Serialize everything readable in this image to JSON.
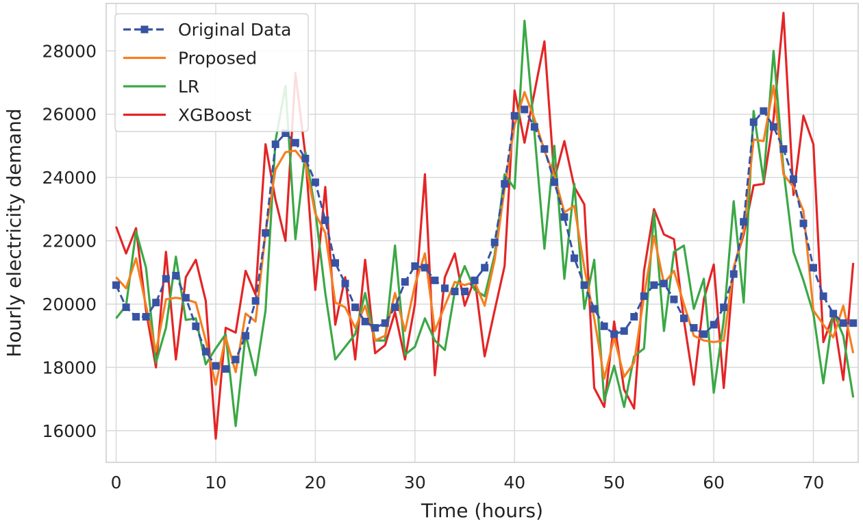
{
  "chart_data": {
    "type": "line",
    "title": "",
    "xlabel": "Time (hours)",
    "ylabel": "Hourly electricity demand",
    "xlim": [
      -1,
      74.5
    ],
    "ylim": [
      15000,
      29500
    ],
    "xticks": [
      0,
      10,
      20,
      30,
      40,
      50,
      60,
      70
    ],
    "yticks": [
      16000,
      18000,
      20000,
      22000,
      24000,
      26000,
      28000
    ],
    "grid": true,
    "legend_position": "top-left",
    "x": [
      0,
      1,
      2,
      3,
      4,
      5,
      6,
      7,
      8,
      9,
      10,
      11,
      12,
      13,
      14,
      15,
      16,
      17,
      18,
      19,
      20,
      21,
      22,
      23,
      24,
      25,
      26,
      27,
      28,
      29,
      30,
      31,
      32,
      33,
      34,
      35,
      36,
      37,
      38,
      39,
      40,
      41,
      42,
      43,
      44,
      45,
      46,
      47,
      48,
      49,
      50,
      51,
      52,
      53,
      54,
      55,
      56,
      57,
      58,
      59,
      60,
      61,
      62,
      63,
      64,
      65,
      66,
      67,
      68,
      69,
      70,
      71,
      72,
      73,
      74
    ],
    "series": [
      {
        "name": "Original Data",
        "color": "#3853a4",
        "marker": "square",
        "dashed": true,
        "values": [
          20600,
          19900,
          19600,
          19600,
          20050,
          20800,
          20900,
          20200,
          19300,
          18500,
          18050,
          17950,
          18250,
          19000,
          20100,
          22250,
          25050,
          25400,
          25100,
          24600,
          23850,
          22650,
          21300,
          20650,
          19900,
          19450,
          19250,
          19400,
          19900,
          20700,
          21200,
          21150,
          20750,
          20500,
          20400,
          20400,
          20750,
          21150,
          21950,
          23800,
          25950,
          26150,
          25600,
          24900,
          23850,
          22750,
          21450,
          20600,
          19850,
          19300,
          19050,
          19150,
          19600,
          20250,
          20600,
          20650,
          20150,
          19550,
          19250,
          19050,
          19350,
          19900,
          20950,
          22600,
          25750,
          26100,
          25600,
          24900,
          23950,
          22550,
          21150,
          20250,
          19700,
          19400,
          19400
        ]
      },
      {
        "name": "Proposed",
        "color": "#f57f20",
        "marker": "",
        "dashed": false,
        "values": [
          20850,
          20500,
          21450,
          19950,
          18500,
          20150,
          20200,
          20150,
          20050,
          18850,
          17450,
          18950,
          17850,
          19700,
          19450,
          22250,
          24250,
          24800,
          24850,
          24450,
          22850,
          22250,
          20050,
          19900,
          19250,
          19950,
          18850,
          19000,
          20350,
          19150,
          20600,
          21600,
          19150,
          19950,
          20700,
          20600,
          20700,
          19950,
          21400,
          23650,
          25650,
          26700,
          25850,
          24850,
          24050,
          22900,
          23100,
          21150,
          19550,
          17650,
          18950,
          17700,
          18150,
          20250,
          22150,
          20650,
          21050,
          20000,
          19000,
          18850,
          18800,
          18850,
          21150,
          22300,
          25200,
          25150,
          26900,
          24100,
          23700,
          22950,
          19800,
          19350,
          18950,
          19950,
          18450
        ]
      },
      {
        "name": "LR",
        "color": "#3aa845",
        "marker": "",
        "dashed": false,
        "values": [
          19550,
          19950,
          22300,
          21150,
          18150,
          19250,
          21500,
          19500,
          19550,
          18100,
          18600,
          19050,
          16150,
          19050,
          17750,
          19800,
          25150,
          26900,
          22050,
          24800,
          22950,
          20350,
          18250,
          18650,
          19050,
          20350,
          18850,
          18850,
          21850,
          18400,
          18650,
          19550,
          18850,
          18550,
          20400,
          21200,
          20450,
          20250,
          21550,
          24100,
          23650,
          28950,
          25400,
          21750,
          25000,
          20800,
          23800,
          19850,
          21400,
          16950,
          18050,
          16750,
          18350,
          18600,
          22900,
          19150,
          21650,
          21850,
          19850,
          20800,
          17200,
          19500,
          23250,
          20050,
          26100,
          23900,
          28000,
          24250,
          21650,
          20750,
          19700,
          17500,
          19750,
          19000,
          17050
        ]
      },
      {
        "name": "XGBoost",
        "color": "#e32526",
        "marker": "",
        "dashed": false,
        "values": [
          22450,
          21600,
          22400,
          19800,
          18000,
          21650,
          18250,
          20850,
          21400,
          20100,
          15750,
          19250,
          19100,
          21050,
          20300,
          25050,
          23300,
          22000,
          27300,
          24700,
          20450,
          23700,
          19350,
          20850,
          18250,
          21400,
          18450,
          18700,
          19750,
          18250,
          20000,
          24100,
          17750,
          20850,
          21600,
          19950,
          20800,
          18350,
          19800,
          21200,
          26750,
          25100,
          26700,
          28300,
          23950,
          25150,
          23700,
          23150,
          17350,
          16750,
          19450,
          17300,
          16700,
          21050,
          23000,
          22200,
          22050,
          19500,
          17450,
          20150,
          21250,
          17350,
          21150,
          22200,
          23750,
          23800,
          25850,
          29200,
          23450,
          25950,
          25050,
          18800,
          19650,
          17600,
          21300
        ]
      }
    ]
  }
}
